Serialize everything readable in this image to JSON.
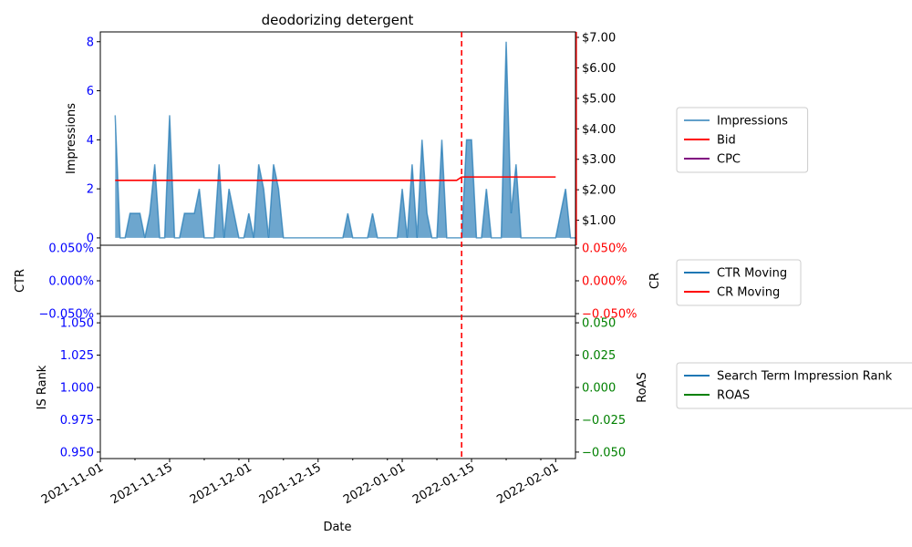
{
  "colors": {
    "impressions": "#1f77b4",
    "bid": "#ff0000",
    "cpc": "#800080",
    "ctr": "#1f77b4",
    "cr": "#ff0000",
    "rank": "#1f77b4",
    "roas": "#008000",
    "blue_ticks": "#0000ff",
    "red_ticks": "#ff0000",
    "green_ticks": "#008000",
    "vline": "#ff0000"
  },
  "chart_data": [
    {
      "type": "area",
      "title": "deodorizing detergent",
      "ylabel": "Impressions",
      "ylabel_right": "",
      "ylim": [
        -0.3,
        8.4
      ],
      "ylim_right": [
        0,
        7.0
      ],
      "yticks": [
        0,
        2,
        4,
        6,
        8
      ],
      "yticks_right": [
        1,
        2,
        3,
        4,
        5,
        6,
        7
      ],
      "ytick_labels_right": [
        "$1.00",
        "$2.00",
        "$3.00",
        "$4.00",
        "$5.00",
        "$6.00",
        "$7.00"
      ],
      "legend": [
        "Impressions",
        "Bid",
        "CPC"
      ],
      "impressions": {
        "start": "2021-11-04",
        "values": [
          5,
          0,
          0,
          1,
          1,
          1,
          0,
          1,
          3,
          0,
          0,
          5,
          0,
          0,
          1,
          1,
          1,
          2,
          0,
          0,
          0,
          3,
          0,
          2,
          1,
          0,
          0,
          1,
          0,
          3,
          2,
          0,
          3,
          2,
          0,
          0,
          0,
          0,
          0,
          0,
          0,
          0,
          0,
          0,
          0,
          0,
          0,
          1,
          0,
          0,
          0,
          0,
          1,
          0,
          0,
          0,
          0,
          0,
          2,
          0,
          3,
          0,
          4,
          1,
          0,
          0,
          4,
          0,
          0,
          0,
          0,
          4,
          4,
          0,
          0,
          2,
          0,
          0,
          0,
          8,
          1,
          3,
          0,
          0,
          0,
          0,
          0,
          0,
          0,
          0,
          1,
          2,
          0,
          0
        ]
      },
      "bid": [
        {
          "x": "2021-11-04",
          "y": 2.13
        },
        {
          "x": "2022-01-12",
          "y": 2.13
        },
        {
          "x": "2022-01-13",
          "y": 2.24
        },
        {
          "x": "2022-02-01",
          "y": 2.24
        }
      ],
      "cpc": []
    },
    {
      "type": "line",
      "ylabel": "CTR",
      "ylabel_right": "CR",
      "ylim": [
        -0.05,
        0.05
      ],
      "yticks": [
        -0.05,
        0.0,
        0.05
      ],
      "ytick_labels": [
        "−0.050%",
        "0.000%",
        "0.050%"
      ],
      "ytick_labels_right": [
        "−0.050%",
        "0.000%",
        "0.050%"
      ],
      "legend": [
        "CTR Moving",
        "CR Moving"
      ],
      "series": []
    },
    {
      "type": "line",
      "ylabel": "IS Rank",
      "ylabel_right": "RoAS",
      "ylim": [
        0.945,
        1.055
      ],
      "yticks": [
        0.95,
        0.975,
        1.0,
        1.025,
        1.05
      ],
      "ytick_labels": [
        "0.950",
        "0.975",
        "1.000",
        "1.025",
        "1.050"
      ],
      "ylim_right": [
        -0.055,
        0.055
      ],
      "yticks_right": [
        -0.05,
        -0.025,
        0.0,
        0.025,
        0.05
      ],
      "ytick_labels_right": [
        "−0.050",
        "−0.025",
        "0.000",
        "0.025",
        "0.050"
      ],
      "xlabel": "Date",
      "xticks": [
        "2021-11-01",
        "2021-11-15",
        "2021-12-01",
        "2021-12-15",
        "2022-01-01",
        "2022-01-15",
        "2022-02-01"
      ],
      "xlim": [
        "2021-11-01",
        "2022-02-05"
      ],
      "vline": "2022-01-13",
      "legend": [
        "Search Term Impression Rank",
        "ROAS"
      ],
      "series": []
    }
  ]
}
